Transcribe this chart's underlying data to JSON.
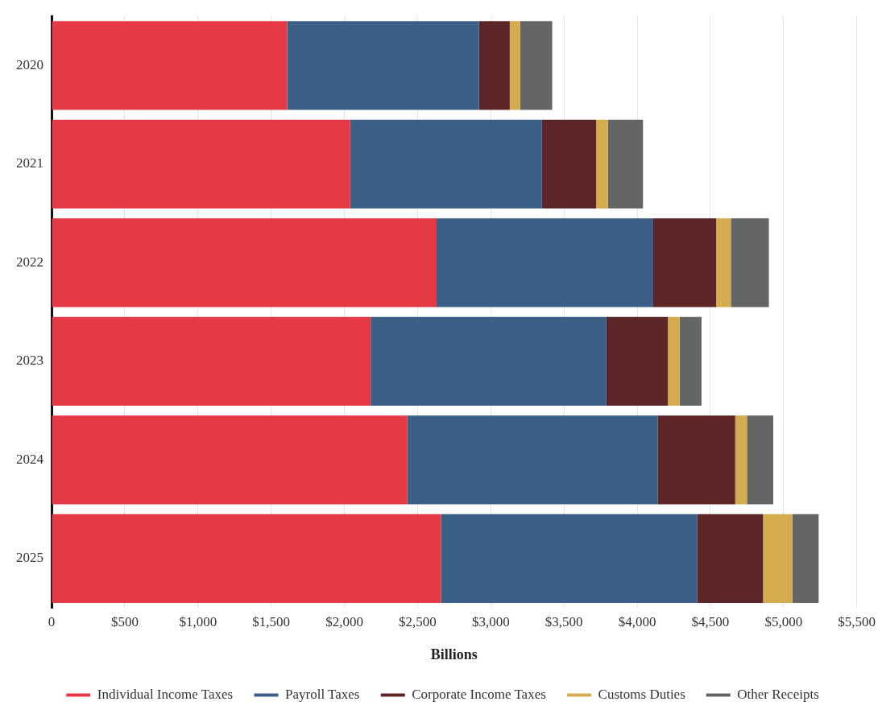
{
  "chart_data": {
    "type": "bar",
    "orientation": "horizontal",
    "stacked": true,
    "xlabel": "Billions",
    "categories": [
      "2020",
      "2021",
      "2022",
      "2023",
      "2024",
      "2025"
    ],
    "series": [
      {
        "name": "Individual Income Taxes",
        "color": "#e53a46",
        "values": [
          1610,
          2040,
          2630,
          2180,
          2430,
          2660
        ]
      },
      {
        "name": "Payroll Taxes",
        "color": "#3c5f88",
        "values": [
          1310,
          1310,
          1480,
          1610,
          1710,
          1750
        ]
      },
      {
        "name": "Corporate Income Taxes",
        "color": "#5c2527",
        "values": [
          210,
          370,
          430,
          420,
          530,
          450
        ]
      },
      {
        "name": "Customs Duties",
        "color": "#d4ac4f",
        "values": [
          70,
          80,
          100,
          80,
          80,
          200
        ]
      },
      {
        "name": "Other Receipts",
        "color": "#646665",
        "values": [
          220,
          240,
          260,
          150,
          180,
          180
        ]
      }
    ],
    "xlim": [
      0,
      5500
    ],
    "xticks": [
      {
        "value": 0,
        "label": "0"
      },
      {
        "value": 500,
        "label": "$500"
      },
      {
        "value": 1000,
        "label": "$1,000"
      },
      {
        "value": 1500,
        "label": "$1,500"
      },
      {
        "value": 2000,
        "label": "$2,000"
      },
      {
        "value": 2500,
        "label": "$2,500"
      },
      {
        "value": 3000,
        "label": "$3,000"
      },
      {
        "value": 3500,
        "label": "$3,500"
      },
      {
        "value": 4000,
        "label": "$4,000"
      },
      {
        "value": 4500,
        "label": "$4,500"
      },
      {
        "value": 5000,
        "label": "$5,000"
      },
      {
        "value": 5500,
        "label": "$5,500"
      }
    ],
    "grid": "x",
    "legend": "bottom"
  }
}
